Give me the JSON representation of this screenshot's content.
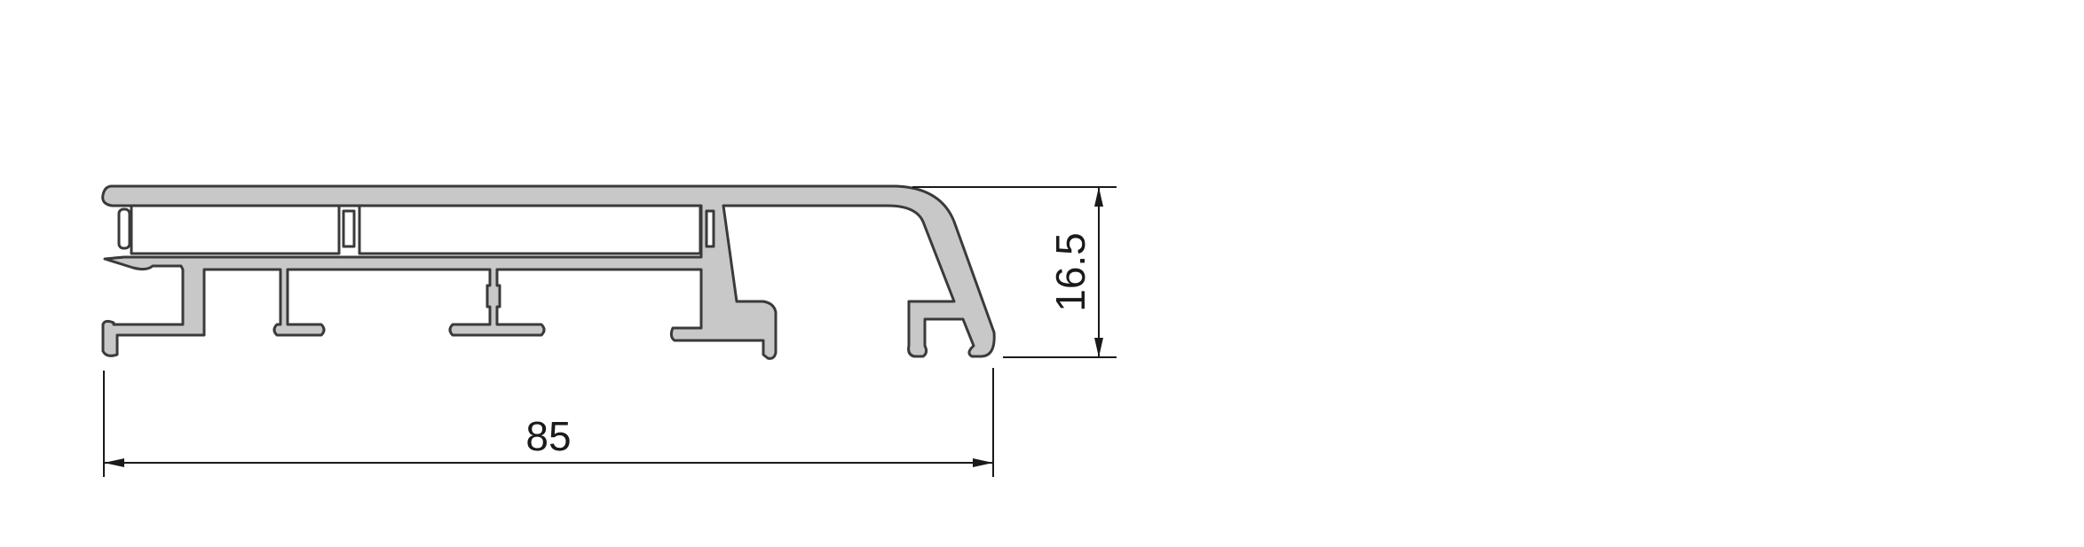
{
  "dimensions": {
    "width_label": "85",
    "height_label": "16.5"
  },
  "colors": {
    "profile_fill": "#c8c8c8",
    "outline": "#3a3a3a",
    "dimension_line": "#1a1a1a"
  }
}
